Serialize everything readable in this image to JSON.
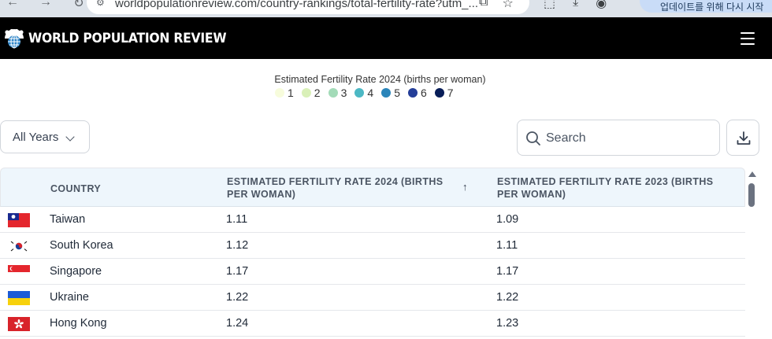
{
  "browser": {
    "url": "worldpopulationreview.com/country-rankings/total-fertility-rate?utm_...",
    "profile_text": "업데이트를 위해 다시 시작"
  },
  "site": {
    "logo_text": "WORLD POPULATION REVIEW",
    "menu_icon": "hamburger-menu-icon"
  },
  "legend": {
    "title": "Estimated Fertility Rate 2024 (births per woman)",
    "items": [
      {
        "label": "1",
        "color": "#f7fcdc"
      },
      {
        "label": "2",
        "color": "#d9f0b8"
      },
      {
        "label": "3",
        "color": "#a3dbb8"
      },
      {
        "label": "4",
        "color": "#4cb8c4"
      },
      {
        "label": "5",
        "color": "#2b85ba"
      },
      {
        "label": "6",
        "color": "#243e98"
      },
      {
        "label": "7",
        "color": "#081d58"
      }
    ]
  },
  "controls": {
    "years_select": "All Years",
    "search_placeholder": "Search",
    "download_icon": "download-icon"
  },
  "table": {
    "headers": {
      "country": "COUNTRY",
      "rate_2024_line1": "ESTIMATED FERTILITY RATE 2024 (BIRTHS",
      "rate_2024_line2": "PER WOMAN)",
      "rate_2023_line1": "ESTIMATED FERTILITY RATE 2023 (BIRTHS",
      "rate_2023_line2": "PER WOMAN)",
      "sort_indicator": "↑"
    },
    "rows": [
      {
        "country": "Taiwan",
        "flag": "taiwan-flag",
        "rate_2024": "1.11",
        "rate_2023": "1.09"
      },
      {
        "country": "South Korea",
        "flag": "south-korea-flag",
        "rate_2024": "1.12",
        "rate_2023": "1.11"
      },
      {
        "country": "Singapore",
        "flag": "singapore-flag",
        "rate_2024": "1.17",
        "rate_2023": "1.17"
      },
      {
        "country": "Ukraine",
        "flag": "ukraine-flag",
        "rate_2024": "1.22",
        "rate_2023": "1.22"
      },
      {
        "country": "Hong Kong",
        "flag": "hong-kong-flag",
        "rate_2024": "1.24",
        "rate_2023": "1.23"
      }
    ]
  }
}
